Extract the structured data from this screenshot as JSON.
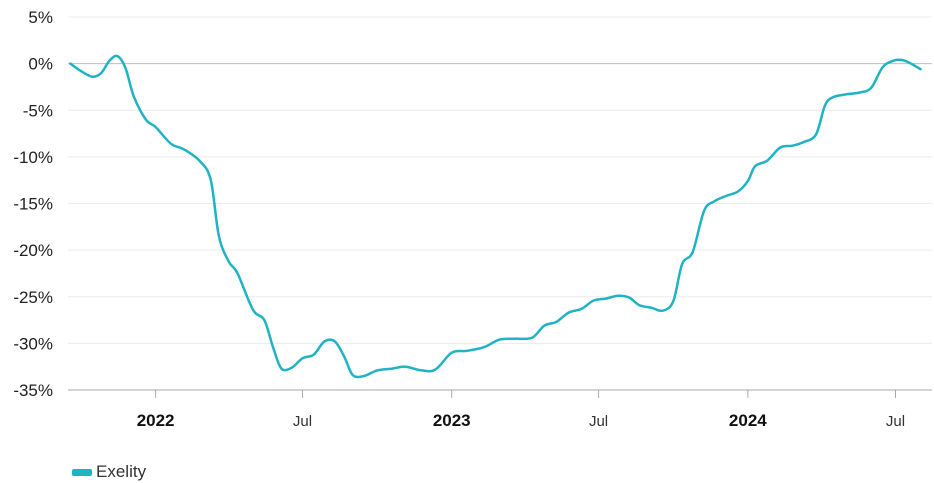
{
  "chart_data": {
    "type": "line",
    "title": "",
    "xlabel": "",
    "ylabel": "",
    "y_unit": "%",
    "ylim": [
      -35,
      5
    ],
    "y_ticks": [
      5,
      0,
      -5,
      -10,
      -15,
      -20,
      -25,
      -30,
      -35
    ],
    "y_tick_labels": [
      "5%",
      "0%",
      "-5%",
      "-10%",
      "-15%",
      "-20%",
      "-25%",
      "-30%",
      "-35%"
    ],
    "xlim": [
      "2021-09-15",
      "2024-08-15"
    ],
    "x_ticks": [
      {
        "date": "2022-01-01",
        "label": "2022",
        "bold": true
      },
      {
        "date": "2022-07-01",
        "label": "Jul",
        "bold": false
      },
      {
        "date": "2023-01-01",
        "label": "2023",
        "bold": true
      },
      {
        "date": "2023-07-01",
        "label": "Jul",
        "bold": false
      },
      {
        "date": "2024-01-01",
        "label": "2024",
        "bold": true
      },
      {
        "date": "2024-07-01",
        "label": "Jul",
        "bold": false
      }
    ],
    "grid": true,
    "legend": "bottom-left",
    "colors": {
      "series": "#1fb3c3",
      "grid": "#ececec",
      "zero_line": "#bfbfbf",
      "axis": "#aaaaaa"
    },
    "series": [
      {
        "name": "Exelity",
        "color": "#1fb3c3",
        "points": [
          [
            "2021-09-18",
            0.0
          ],
          [
            "2021-10-01",
            -0.8
          ],
          [
            "2021-10-15",
            -1.4
          ],
          [
            "2021-10-26",
            -1.0
          ],
          [
            "2021-11-05",
            0.3
          ],
          [
            "2021-11-15",
            0.8
          ],
          [
            "2021-11-25",
            -0.5
          ],
          [
            "2021-12-05",
            -3.5
          ],
          [
            "2021-12-20",
            -6.0
          ],
          [
            "2022-01-01",
            -6.8
          ],
          [
            "2022-01-20",
            -8.6
          ],
          [
            "2022-02-05",
            -9.2
          ],
          [
            "2022-02-25",
            -10.5
          ],
          [
            "2022-03-10",
            -12.5
          ],
          [
            "2022-03-20",
            -18.5
          ],
          [
            "2022-04-01",
            -21.2
          ],
          [
            "2022-04-12",
            -22.5
          ],
          [
            "2022-05-01",
            -26.4
          ],
          [
            "2022-05-15",
            -27.5
          ],
          [
            "2022-05-26",
            -30.5
          ],
          [
            "2022-06-05",
            -32.7
          ],
          [
            "2022-06-18",
            -32.6
          ],
          [
            "2022-07-01",
            -31.6
          ],
          [
            "2022-07-15",
            -31.2
          ],
          [
            "2022-07-28",
            -29.8
          ],
          [
            "2022-08-10",
            -29.8
          ],
          [
            "2022-08-22",
            -31.5
          ],
          [
            "2022-09-01",
            -33.4
          ],
          [
            "2022-09-15",
            -33.5
          ],
          [
            "2022-10-01",
            -32.9
          ],
          [
            "2022-10-20",
            -32.7
          ],
          [
            "2022-11-05",
            -32.5
          ],
          [
            "2022-11-25",
            -32.9
          ],
          [
            "2022-12-12",
            -32.8
          ],
          [
            "2023-01-01",
            -31.0
          ],
          [
            "2023-01-20",
            -30.8
          ],
          [
            "2023-02-10",
            -30.4
          ],
          [
            "2023-03-01",
            -29.6
          ],
          [
            "2023-03-20",
            -29.5
          ],
          [
            "2023-04-10",
            -29.4
          ],
          [
            "2023-04-25",
            -28.1
          ],
          [
            "2023-05-10",
            -27.7
          ],
          [
            "2023-05-25",
            -26.7
          ],
          [
            "2023-06-10",
            -26.3
          ],
          [
            "2023-06-25",
            -25.4
          ],
          [
            "2023-07-10",
            -25.2
          ],
          [
            "2023-07-25",
            -24.9
          ],
          [
            "2023-08-08",
            -25.1
          ],
          [
            "2023-08-20",
            -25.9
          ],
          [
            "2023-09-05",
            -26.2
          ],
          [
            "2023-09-18",
            -26.5
          ],
          [
            "2023-10-01",
            -25.5
          ],
          [
            "2023-10-12",
            -21.5
          ],
          [
            "2023-10-25",
            -20.2
          ],
          [
            "2023-11-08",
            -15.8
          ],
          [
            "2023-11-20",
            -14.8
          ],
          [
            "2023-12-05",
            -14.2
          ],
          [
            "2023-12-20",
            -13.7
          ],
          [
            "2024-01-01",
            -12.6
          ],
          [
            "2024-01-10",
            -11.0
          ],
          [
            "2024-01-25",
            -10.4
          ],
          [
            "2024-02-10",
            -9.0
          ],
          [
            "2024-02-25",
            -8.8
          ],
          [
            "2024-03-10",
            -8.4
          ],
          [
            "2024-03-25",
            -7.6
          ],
          [
            "2024-04-05",
            -4.5
          ],
          [
            "2024-04-15",
            -3.6
          ],
          [
            "2024-05-01",
            -3.3
          ],
          [
            "2024-05-18",
            -3.1
          ],
          [
            "2024-06-01",
            -2.6
          ],
          [
            "2024-06-15",
            -0.4
          ],
          [
            "2024-06-28",
            0.3
          ],
          [
            "2024-07-08",
            0.4
          ],
          [
            "2024-07-18",
            0.1
          ],
          [
            "2024-08-01",
            -0.6
          ]
        ]
      }
    ]
  },
  "legend": {
    "label": "Exelity"
  }
}
